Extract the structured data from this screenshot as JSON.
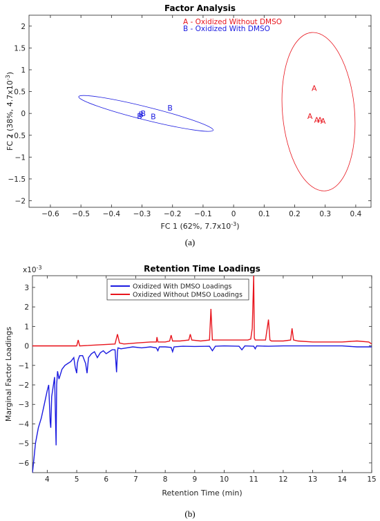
{
  "captions": [
    "(a)",
    "(b)"
  ],
  "chart_data": [
    {
      "type": "scatter",
      "title": "Factor Analysis",
      "xlabel": "FC 1 (62%, 7.7x10",
      "xlabel_exp": "-3",
      "xlabel_end": ")",
      "ylabel": "FC 2 (38%, 4.7x10",
      "ylabel_exp": "-3",
      "ylabel_end": ")",
      "xlim": [
        -0.67,
        0.45
      ],
      "ylim": [
        -2.15,
        2.25
      ],
      "xticks": [
        -0.6,
        -0.5,
        -0.4,
        -0.3,
        -0.2,
        -0.1,
        0,
        0.1,
        0.2,
        0.3,
        0.4
      ],
      "xtick_labels": [
        "−0.6",
        "−0.5",
        "−0.4",
        "−0.3",
        "−0.2",
        "−0.1",
        "0",
        "0.1",
        "0.2",
        "0.3",
        "0.4"
      ],
      "yticks": [
        -2,
        -1.5,
        -1,
        -0.5,
        0,
        0.5,
        1,
        1.5,
        2
      ],
      "ytick_labels": [
        "−2",
        "−1.5",
        "−1",
        "−0.5",
        "0",
        "0.5",
        "1",
        "1.5",
        "2"
      ],
      "grid": false,
      "legend": {
        "placement": "top-center",
        "entries": [
          {
            "text": "A - Oxidized Without DMSO",
            "color": "#e8141c"
          },
          {
            "text": "B - Oxidized With DMSO",
            "color": "#1a1ae0"
          }
        ]
      },
      "series": [
        {
          "marker": "A",
          "color": "#e8141c",
          "points": [
            [
              0.264,
              0.58
            ],
            [
              0.25,
              -0.06
            ],
            [
              0.272,
              -0.15
            ],
            [
              0.283,
              -0.15
            ],
            [
              0.293,
              -0.17
            ]
          ],
          "ellipse": {
            "cx": 0.278,
            "cy": 0.04,
            "rx_data": 0.118,
            "ry_data": 1.82,
            "angle_deg": -5
          }
        },
        {
          "marker": "B",
          "color": "#1a1ae0",
          "points": [
            [
              -0.208,
              0.13
            ],
            [
              -0.296,
              0.0
            ],
            [
              -0.303,
              -0.02
            ],
            [
              -0.263,
              -0.07
            ],
            [
              -0.308,
              -0.06
            ]
          ],
          "ellipse": {
            "cx": -0.287,
            "cy": 0.0,
            "rx_data": 0.227,
            "ry_data": 0.15,
            "angle_deg": 14
          }
        }
      ]
    },
    {
      "type": "line",
      "title": "Retention Time Loadings",
      "xlabel": "Retention Time (min)",
      "ylabel": "Marginal Factor Loadings",
      "scale_label": "x10",
      "scale_exp": "-3",
      "xlim": [
        3.5,
        15
      ],
      "ylim": [
        -6.5,
        3.6
      ],
      "xticks": [
        4,
        5,
        6,
        7,
        8,
        9,
        10,
        11,
        12,
        13,
        14,
        15
      ],
      "xtick_labels": [
        "4",
        "5",
        "6",
        "7",
        "8",
        "9",
        "10",
        "11",
        "12",
        "13",
        "14",
        "15"
      ],
      "yticks": [
        -6,
        -5,
        -4,
        -3,
        -2,
        -1,
        0,
        1,
        2,
        3
      ],
      "ytick_labels": [
        "−6",
        "−5",
        "−4",
        "−3",
        "−2",
        "−1",
        "0",
        "1",
        "2",
        "3"
      ],
      "grid": false,
      "legend": {
        "placement": "top-center",
        "entries": [
          {
            "text": "Oxidized With DMSO Loadings",
            "color": "#1a1ae0"
          },
          {
            "text": "Oxidized Without DMSO Loadings",
            "color": "#e8141c"
          }
        ]
      },
      "series": [
        {
          "color": "#1a1ae0",
          "x": [
            3.5,
            3.55,
            3.6,
            3.7,
            3.8,
            3.9,
            4.0,
            4.05,
            4.1,
            4.12,
            4.15,
            4.2,
            4.25,
            4.3,
            4.32,
            4.35,
            4.4,
            4.5,
            4.6,
            4.7,
            4.8,
            4.9,
            4.95,
            5.0,
            5.02,
            5.05,
            5.1,
            5.2,
            5.3,
            5.35,
            5.4,
            5.5,
            5.6,
            5.7,
            5.8,
            5.9,
            6.0,
            6.1,
            6.2,
            6.3,
            6.35,
            6.38,
            6.4,
            6.5,
            6.7,
            6.9,
            7.2,
            7.5,
            7.7,
            7.75,
            7.8,
            8.0,
            8.2,
            8.25,
            8.3,
            8.6,
            9.0,
            9.5,
            9.6,
            9.7,
            10.0,
            10.5,
            10.6,
            10.7,
            11.0,
            11.05,
            11.1,
            11.5,
            12.0,
            13.0,
            14.0,
            14.5,
            15.0
          ],
          "y": [
            -6.5,
            -5.8,
            -5.0,
            -4.2,
            -3.7,
            -3.0,
            -2.3,
            -2.0,
            -3.9,
            -4.2,
            -2.6,
            -2.1,
            -1.6,
            -5.1,
            -2.0,
            -1.3,
            -1.7,
            -1.2,
            -1.0,
            -0.9,
            -0.8,
            -0.6,
            -1.1,
            -1.4,
            -0.9,
            -0.7,
            -0.5,
            -0.5,
            -0.9,
            -1.4,
            -0.6,
            -0.4,
            -0.3,
            -0.6,
            -0.35,
            -0.25,
            -0.4,
            -0.3,
            -0.2,
            -0.2,
            -1.35,
            -0.3,
            -0.1,
            -0.15,
            -0.1,
            -0.05,
            -0.1,
            -0.05,
            -0.1,
            -0.25,
            -0.05,
            -0.05,
            -0.08,
            -0.3,
            -0.05,
            -0.02,
            -0.03,
            -0.02,
            -0.25,
            -0.02,
            0.0,
            -0.02,
            -0.2,
            0.0,
            -0.02,
            -0.15,
            0.0,
            -0.02,
            0.0,
            0.0,
            0.0,
            -0.05,
            -0.05
          ]
        },
        {
          "color": "#e8141c",
          "x": [
            3.5,
            4.9,
            5.0,
            5.05,
            5.1,
            6.3,
            6.38,
            6.45,
            6.6,
            6.8,
            7.0,
            7.5,
            7.7,
            7.72,
            7.75,
            8.0,
            8.15,
            8.2,
            8.25,
            8.5,
            8.8,
            8.85,
            8.9,
            9.2,
            9.5,
            9.55,
            9.6,
            10.0,
            10.5,
            10.8,
            10.9,
            10.95,
            11.0,
            11.02,
            11.05,
            11.1,
            11.4,
            11.5,
            11.55,
            11.6,
            12.0,
            12.25,
            12.3,
            12.35,
            12.5,
            13.0,
            13.5,
            14.0,
            14.5,
            14.9,
            15.0
          ],
          "y": [
            0.0,
            0.0,
            0.0,
            0.3,
            0.0,
            0.1,
            0.6,
            0.15,
            0.1,
            0.12,
            0.15,
            0.2,
            0.2,
            0.45,
            0.2,
            0.2,
            0.25,
            0.55,
            0.25,
            0.25,
            0.3,
            0.6,
            0.3,
            0.25,
            0.3,
            1.9,
            0.3,
            0.3,
            0.3,
            0.3,
            0.35,
            0.9,
            3.6,
            0.4,
            0.3,
            0.3,
            0.3,
            1.35,
            0.3,
            0.25,
            0.25,
            0.3,
            0.9,
            0.3,
            0.25,
            0.2,
            0.2,
            0.2,
            0.25,
            0.2,
            0.1
          ]
        },
        {
          "color": "#e8141c",
          "x": [
            3.5,
            4.98
          ],
          "y": [
            0.0,
            0.0
          ]
        }
      ]
    }
  ]
}
